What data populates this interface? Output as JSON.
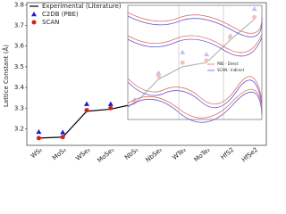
{
  "chart_data": {
    "type": "line",
    "y_label": "Lattice Constant (Å)",
    "categories": [
      "WS₂",
      "MoS₂",
      "WSe₂",
      "MoSe₂",
      "NbS₂",
      "NbSe₂",
      "WTe₂",
      "MoTe₂",
      "HfS2",
      "HfSe2"
    ],
    "ylim": [
      3.12,
      3.81
    ],
    "yticks": [
      3.2,
      3.3,
      3.4,
      3.5,
      3.6,
      3.7,
      3.8
    ],
    "legend": "upper left",
    "series": [
      {
        "name": "Experimental (Literature)",
        "color": "#000000",
        "marker": "line",
        "values": [
          3.155,
          3.16,
          3.285,
          3.295,
          3.32,
          3.44,
          3.5,
          3.52,
          3.63,
          3.73
        ]
      },
      {
        "name": "C2DB (PBE)",
        "color": "#1a1adb",
        "marker": "triangle",
        "values": [
          3.185,
          3.183,
          3.32,
          3.32,
          3.34,
          3.47,
          3.57,
          3.56,
          3.65,
          3.78
        ]
      },
      {
        "name": "SCAN",
        "color": "#d62020",
        "marker": "circle",
        "values": [
          3.155,
          3.16,
          3.29,
          3.3,
          3.33,
          3.455,
          3.52,
          3.53,
          3.64,
          3.74
        ]
      }
    ],
    "inset": {
      "series": [
        {
          "name": "PBE - Direct",
          "color": "#e07070"
        },
        {
          "name": "SCAN - Indirect",
          "color": "#6a5acd"
        }
      ]
    }
  }
}
